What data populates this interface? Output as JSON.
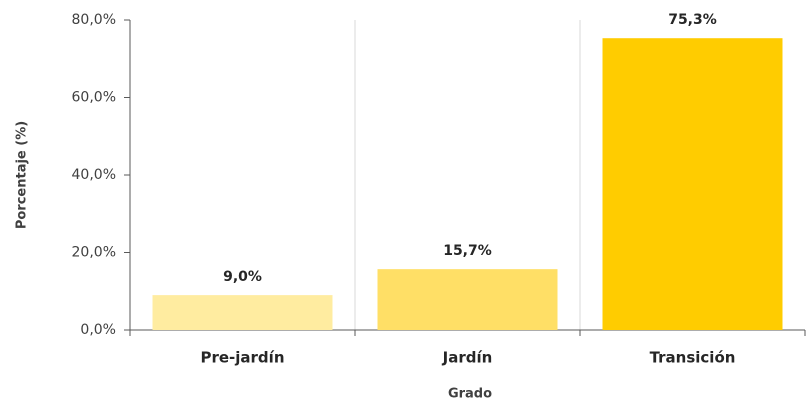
{
  "chart_data": {
    "type": "bar",
    "categories": [
      "Pre-jardín",
      "Jardín",
      "Transición"
    ],
    "values": [
      9.0,
      15.7,
      75.3
    ],
    "value_labels": [
      "9,0%",
      "15,7%",
      "75,3%"
    ],
    "colors": [
      "#ffeca0",
      "#ffdf66",
      "#ffcc00"
    ],
    "ylim": [
      0,
      80
    ],
    "yticks": [
      {
        "value": 0,
        "label": "0,0%"
      },
      {
        "value": 20,
        "label": "20,0%"
      },
      {
        "value": 40,
        "label": "40,0%"
      },
      {
        "value": 60,
        "label": "60,0%"
      },
      {
        "value": 80,
        "label": "80,0%"
      }
    ],
    "y_label": "Porcentaje (%)",
    "x_label": "Grado"
  }
}
